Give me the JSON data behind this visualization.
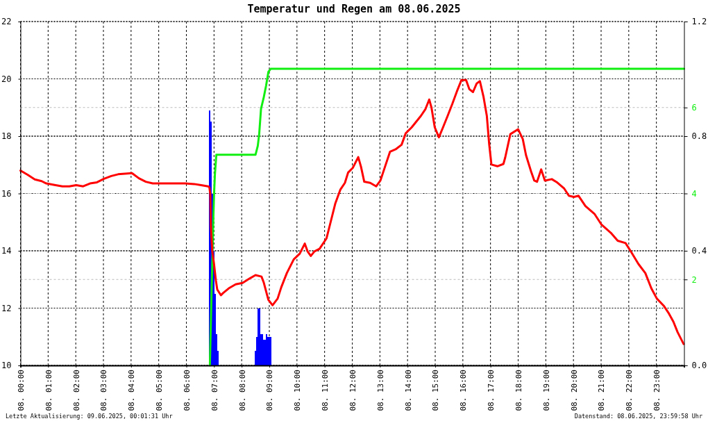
{
  "chart_data": {
    "type": "line",
    "title": "Temperatur und Regen am 08.06.2025",
    "annotations": [
      "Letzte Aktualisierung: 09.06.2025, 00:01:31 Uhr",
      "Datenstand: 08.06.2025, 23:59:58 Uhr"
    ],
    "xlim": [
      "2025-06-08T00:00",
      "2025-06-09T00:00"
    ],
    "xticks": [
      {
        "value": "2025-06-08T00:00",
        "label": "08. 00:00"
      },
      {
        "value": "2025-06-08T01:00",
        "label": "08. 01:00"
      },
      {
        "value": "2025-06-08T02:00",
        "label": "08. 02:00"
      },
      {
        "value": "2025-06-08T03:00",
        "label": "08. 03:00"
      },
      {
        "value": "2025-06-08T04:00",
        "label": "08. 04:00"
      },
      {
        "value": "2025-06-08T05:00",
        "label": "08. 05:00"
      },
      {
        "value": "2025-06-08T06:00",
        "label": "08. 06:00"
      },
      {
        "value": "2025-06-08T07:00",
        "label": "08. 07:00"
      },
      {
        "value": "2025-06-08T08:00",
        "label": "08. 08:00"
      },
      {
        "value": "2025-06-08T09:00",
        "label": "08. 09:00"
      },
      {
        "value": "2025-06-08T10:00",
        "label": "08. 10:00"
      },
      {
        "value": "2025-06-08T11:00",
        "label": "08. 11:00"
      },
      {
        "value": "2025-06-08T12:00",
        "label": "08. 12:00"
      },
      {
        "value": "2025-06-08T13:00",
        "label": "08. 13:00"
      },
      {
        "value": "2025-06-08T14:00",
        "label": "08. 14:00"
      },
      {
        "value": "2025-06-08T15:00",
        "label": "08. 15:00"
      },
      {
        "value": "2025-06-08T16:00",
        "label": "08. 16:00"
      },
      {
        "value": "2025-06-08T17:00",
        "label": "08. 17:00"
      },
      {
        "value": "2025-06-08T18:00",
        "label": "08. 18:00"
      },
      {
        "value": "2025-06-08T19:00",
        "label": "08. 19:00"
      },
      {
        "value": "2025-06-08T20:00",
        "label": "08. 20:00"
      },
      {
        "value": "2025-06-08T21:00",
        "label": "08. 21:00"
      },
      {
        "value": "2025-06-08T22:00",
        "label": "08. 22:00"
      },
      {
        "value": "2025-06-08T23:00",
        "label": "08. 23:00"
      }
    ],
    "ylim": [
      10,
      22
    ],
    "yticks": [
      10,
      12,
      14,
      16,
      18,
      20,
      22
    ],
    "y2lim": [
      0,
      1.2
    ],
    "y2ticks": [
      {
        "value": 0,
        "label": "0.0"
      },
      0.4,
      0.8,
      1.2
    ],
    "y3lim": [
      0,
      8
    ],
    "y3ticks": [
      2,
      4,
      6
    ],
    "grid": true,
    "series": [
      {
        "type": "bar",
        "axis": "y2",
        "color": "#0000ff",
        "x": [
          "2025-06-08T06:50",
          "2025-06-08T06:53",
          "2025-06-08T06:56",
          "2025-06-08T06:59",
          "2025-06-08T07:02",
          "2025-06-08T07:05",
          "2025-06-08T07:08",
          "2025-06-08T08:30",
          "2025-06-08T08:33",
          "2025-06-08T08:36",
          "2025-06-08T08:39",
          "2025-06-08T08:42",
          "2025-06-08T08:45",
          "2025-06-08T08:48",
          "2025-06-08T08:51",
          "2025-06-08T08:54",
          "2025-06-08T08:57",
          "2025-06-08T09:00",
          "2025-06-08T09:03"
        ],
        "values": [
          0.89,
          0.85,
          0.6,
          0.4,
          0.25,
          0.11,
          0.05,
          0.05,
          0.1,
          0.2,
          0.2,
          0.11,
          0.11,
          0.09,
          0.09,
          0.11,
          0.1,
          0.1,
          0.1
        ]
      },
      {
        "axis": "y3",
        "color": "#11ee11",
        "x": [
          "2025-06-08T06:51",
          "2025-06-08T06:58",
          "2025-06-08T07:00",
          "2025-06-08T07:02",
          "2025-06-08T07:05",
          "2025-06-08T08:30",
          "2025-06-08T08:35",
          "2025-06-08T08:38",
          "2025-06-08T08:42",
          "2025-06-08T08:48",
          "2025-06-08T08:53",
          "2025-06-08T08:58",
          "2025-06-08T09:03",
          "2025-06-09T00:00"
        ],
        "values": [
          0,
          3.22,
          3.97,
          4.46,
          4.9,
          4.9,
          5.11,
          5.38,
          5.97,
          6.24,
          6.51,
          6.83,
          6.9,
          6.9
        ]
      },
      {
        "color": "#ff0000",
        "x": [
          "2025-06-08T00:00",
          "2025-06-08T00:16",
          "2025-06-08T00:31",
          "2025-06-08T00:46",
          "2025-06-08T00:56",
          "2025-06-08T01:16",
          "2025-06-08T01:31",
          "2025-06-08T01:46",
          "2025-06-08T02:01",
          "2025-06-08T02:16",
          "2025-06-08T02:31",
          "2025-06-08T02:46",
          "2025-06-08T03:01",
          "2025-06-08T03:17",
          "2025-06-08T03:32",
          "2025-06-08T03:47",
          "2025-06-08T04:02",
          "2025-06-08T04:17",
          "2025-06-08T04:32",
          "2025-06-08T04:47",
          "2025-06-08T05:07",
          "2025-06-08T05:32",
          "2025-06-08T05:57",
          "2025-06-08T06:17",
          "2025-06-08T06:32",
          "2025-06-08T06:47",
          "2025-06-08T06:50",
          "2025-06-08T06:52",
          "2025-06-08T06:53",
          "2025-06-08T06:56",
          "2025-06-08T07:00",
          "2025-06-08T07:04",
          "2025-06-08T07:07",
          "2025-06-08T07:15",
          "2025-06-08T07:20",
          "2025-06-08T07:32",
          "2025-06-08T07:47",
          "2025-06-08T08:02",
          "2025-06-08T08:18",
          "2025-06-08T08:30",
          "2025-06-08T08:43",
          "2025-06-08T08:48",
          "2025-06-08T08:58",
          "2025-06-08T09:07",
          "2025-06-08T09:18",
          "2025-06-08T09:26",
          "2025-06-08T09:38",
          "2025-06-08T09:53",
          "2025-06-08T10:06",
          "2025-06-08T10:17",
          "2025-06-08T10:23",
          "2025-06-08T10:30",
          "2025-06-08T10:38",
          "2025-06-08T10:49",
          "2025-06-08T11:04",
          "2025-06-08T11:13",
          "2025-06-08T11:23",
          "2025-06-08T11:34",
          "2025-06-08T11:44",
          "2025-06-08T11:51",
          "2025-06-08T12:01",
          "2025-06-08T12:13",
          "2025-06-08T12:19",
          "2025-06-08T12:26",
          "2025-06-08T12:39",
          "2025-06-08T12:52",
          "2025-06-08T13:01",
          "2025-06-08T13:11",
          "2025-06-08T13:22",
          "2025-06-08T13:34",
          "2025-06-08T13:47",
          "2025-06-08T13:56",
          "2025-06-08T14:09",
          "2025-06-08T14:19",
          "2025-06-08T14:29",
          "2025-06-08T14:39",
          "2025-06-08T14:47",
          "2025-06-08T14:52",
          "2025-06-08T14:59",
          "2025-06-08T15:08",
          "2025-06-08T15:17",
          "2025-06-08T15:27",
          "2025-06-08T15:37",
          "2025-06-08T15:47",
          "2025-06-08T15:57",
          "2025-06-08T16:07",
          "2025-06-08T16:14",
          "2025-06-08T16:22",
          "2025-06-08T16:30",
          "2025-06-08T16:37",
          "2025-06-08T16:45",
          "2025-06-08T16:52",
          "2025-06-08T16:57",
          "2025-06-08T17:02",
          "2025-06-08T17:15",
          "2025-06-08T17:28",
          "2025-06-08T17:32",
          "2025-06-08T17:43",
          "2025-06-08T18:00",
          "2025-06-08T18:10",
          "2025-06-08T18:17",
          "2025-06-08T18:28",
          "2025-06-08T18:35",
          "2025-06-08T18:41",
          "2025-06-08T18:50",
          "2025-06-08T18:58",
          "2025-06-08T19:13",
          "2025-06-08T19:25",
          "2025-06-08T19:40",
          "2025-06-08T19:50",
          "2025-06-08T20:01",
          "2025-06-08T20:11",
          "2025-06-08T20:26",
          "2025-06-08T20:46",
          "2025-06-08T21:01",
          "2025-06-08T21:21",
          "2025-06-08T21:36",
          "2025-06-08T21:53",
          "2025-06-08T22:06",
          "2025-06-08T22:21",
          "2025-06-08T22:36",
          "2025-06-08T22:49",
          "2025-06-08T23:01",
          "2025-06-08T23:16",
          "2025-06-08T23:26",
          "2025-06-08T23:37",
          "2025-06-08T23:46",
          "2025-06-08T23:59"
        ],
        "values": [
          16.8,
          16.65,
          16.49,
          16.43,
          16.35,
          16.29,
          16.25,
          16.25,
          16.29,
          16.25,
          16.35,
          16.39,
          16.51,
          16.61,
          16.67,
          16.69,
          16.71,
          16.53,
          16.41,
          16.35,
          16.35,
          16.35,
          16.35,
          16.33,
          16.29,
          16.25,
          16.21,
          15.96,
          14.91,
          14.02,
          13.54,
          12.97,
          12.65,
          12.45,
          12.53,
          12.69,
          12.83,
          12.88,
          13.04,
          13.15,
          13.1,
          12.89,
          12.29,
          12.1,
          12.33,
          12.73,
          13.22,
          13.7,
          13.9,
          14.25,
          13.98,
          13.82,
          13.98,
          14.07,
          14.43,
          15,
          15.64,
          16.13,
          16.37,
          16.73,
          16.89,
          17.27,
          16.93,
          16.41,
          16.37,
          16.25,
          16.45,
          16.93,
          17.46,
          17.54,
          17.7,
          18.1,
          18.31,
          18.51,
          18.71,
          18.95,
          19.28,
          18.99,
          18.31,
          17.96,
          18.31,
          18.71,
          19.12,
          19.56,
          19.96,
          19.96,
          19.64,
          19.54,
          19.84,
          19.92,
          19.36,
          18.71,
          17.74,
          17.01,
          16.95,
          17.03,
          17.26,
          18.07,
          18.24,
          17.9,
          17.34,
          16.77,
          16.45,
          16.41,
          16.84,
          16.45,
          16.5,
          16.38,
          16.17,
          15.92,
          15.88,
          15.92,
          15.56,
          15.28,
          14.91,
          14.63,
          14.35,
          14.27,
          13.94,
          13.54,
          13.22,
          12.69,
          12.33,
          12.08,
          11.84,
          11.52,
          11.16,
          10.75
        ]
      }
    ]
  }
}
